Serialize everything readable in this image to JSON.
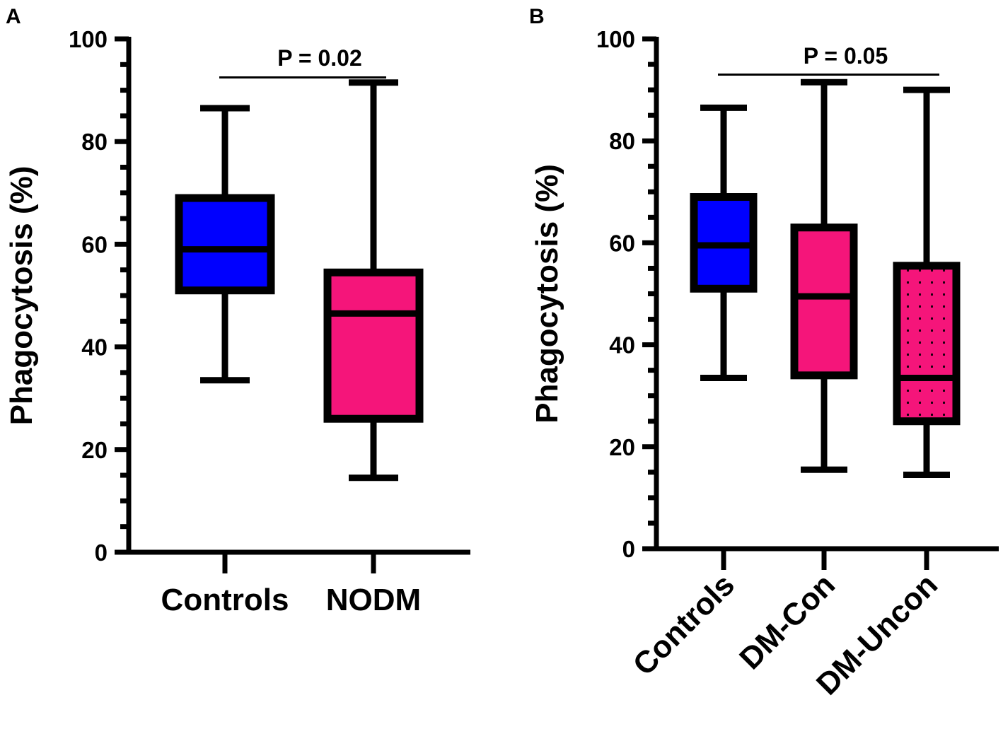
{
  "chart_data": [
    {
      "panel": "A",
      "type": "boxplot",
      "ylabel": "Phagocytosis (%)",
      "ylim": [
        0,
        100
      ],
      "yticks": [
        0,
        20,
        40,
        60,
        80,
        100
      ],
      "categories": [
        "Controls",
        "NODM"
      ],
      "boxes": [
        {
          "name": "Controls",
          "min": 33.5,
          "q1": 51,
          "median": 59,
          "q3": 69,
          "max": 86.5,
          "color": "#0000ff",
          "pattern": "solid"
        },
        {
          "name": "NODM",
          "min": 14.5,
          "q1": 26,
          "median": 46.5,
          "q3": 54.5,
          "max": 91.5,
          "color": "#f5157a",
          "pattern": "solid"
        }
      ],
      "comparisons": [
        {
          "from": 0,
          "to": 1,
          "label": "P = 0.02",
          "y": 92.5
        }
      ]
    },
    {
      "panel": "B",
      "type": "boxplot",
      "ylabel": "Phagocytosis (%)",
      "ylim": [
        0,
        100
      ],
      "yticks": [
        0,
        20,
        40,
        60,
        80,
        100
      ],
      "categories": [
        "Controls",
        "DM-Con",
        "DM-Uncon"
      ],
      "boxes": [
        {
          "name": "Controls",
          "min": 33.5,
          "q1": 51,
          "median": 59.5,
          "q3": 69,
          "max": 86.5,
          "color": "#0000ff",
          "pattern": "solid"
        },
        {
          "name": "DM-Con",
          "min": 15.5,
          "q1": 34,
          "median": 49.5,
          "q3": 63,
          "max": 91.5,
          "color": "#f5157a",
          "pattern": "solid"
        },
        {
          "name": "DM-Uncon",
          "min": 14.5,
          "q1": 25,
          "median": 33.5,
          "q3": 55.5,
          "max": 90,
          "color": "#f5157a",
          "pattern": "dotted"
        }
      ],
      "comparisons": [
        {
          "from": 0,
          "to": 2,
          "label": "P = 0.05",
          "y": 93
        }
      ]
    }
  ]
}
